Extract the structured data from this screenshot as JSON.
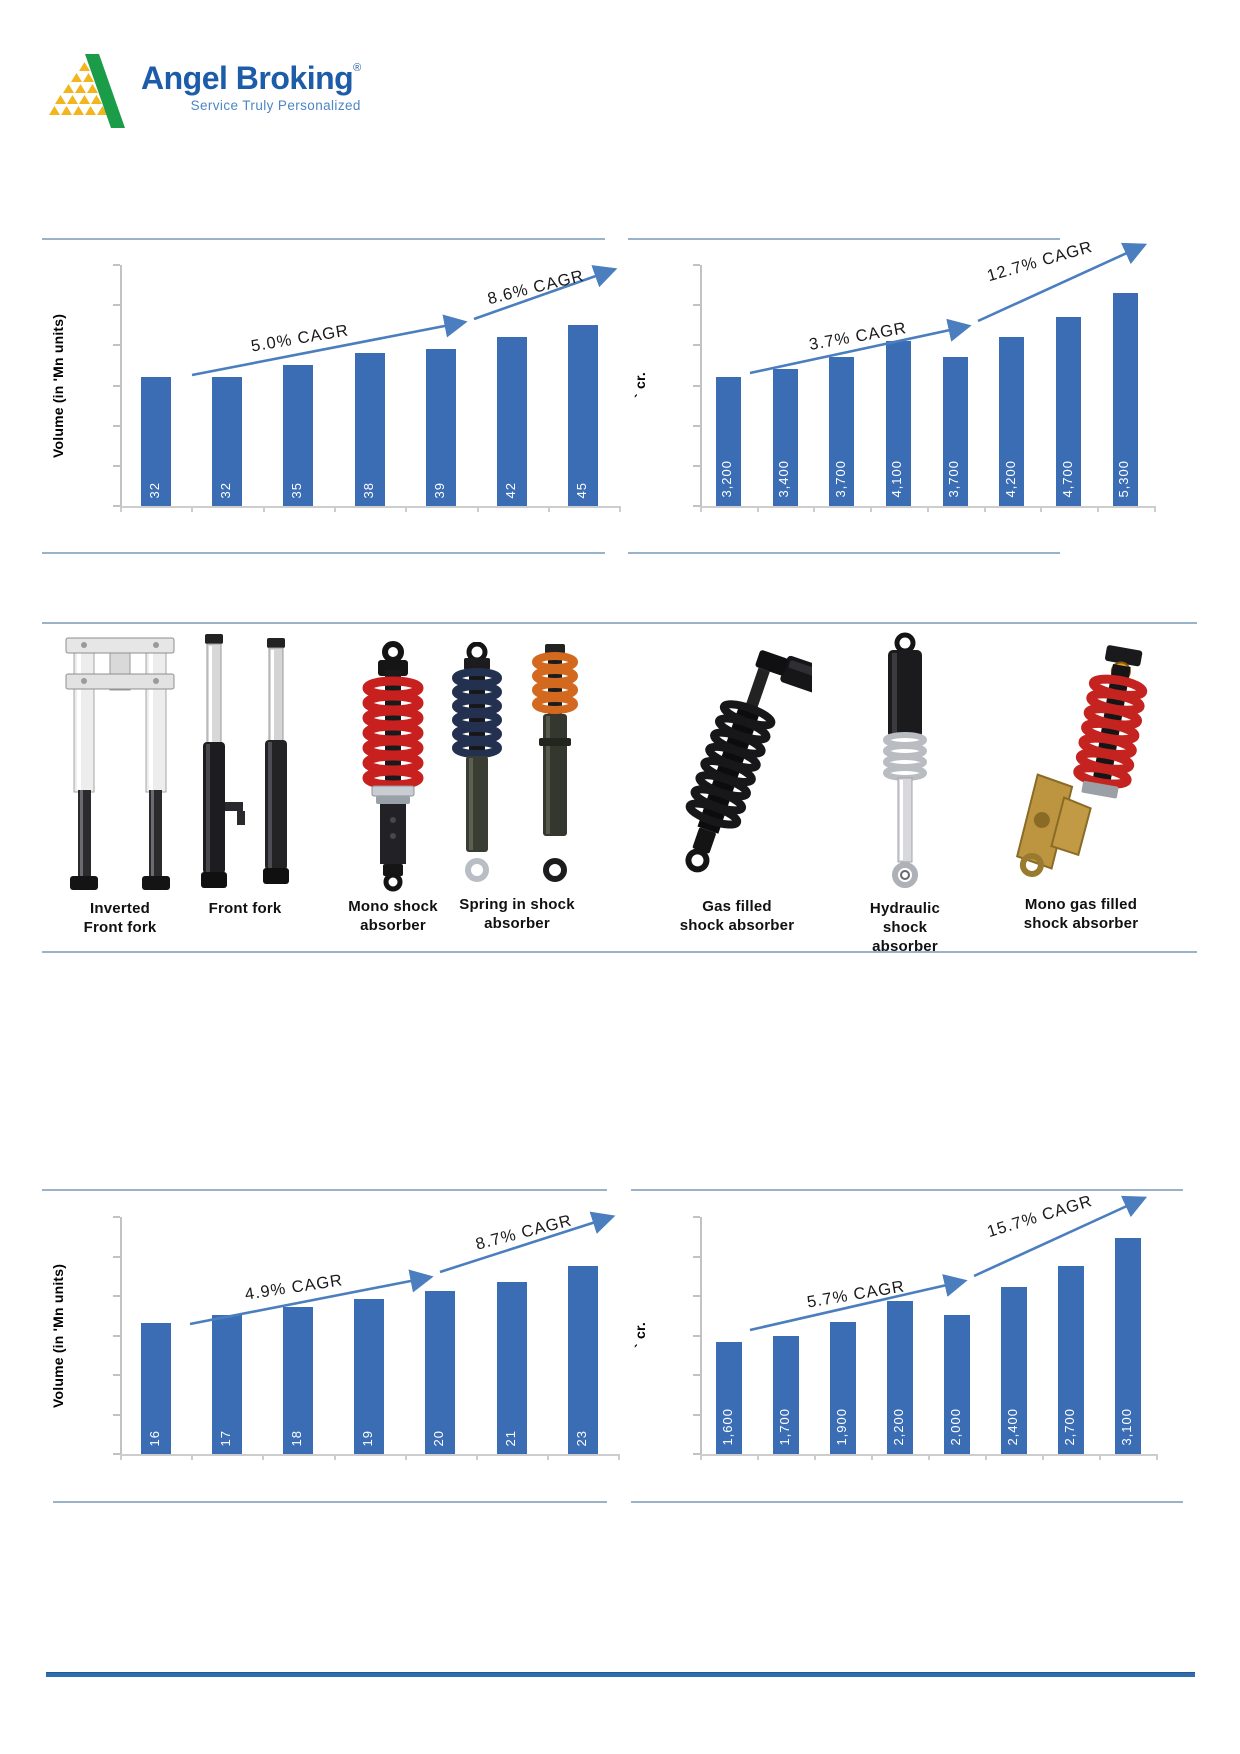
{
  "logo": {
    "title": "Angel Broking",
    "registered": "®",
    "tagline": "Service Truly Personalized"
  },
  "colors": {
    "bar": "#3B6DB5",
    "arrow": "#4A7EBE",
    "divider": "#9BB3C9",
    "bottom_rule": "#2F6DAD",
    "bar_label_text": "#FFFFFF"
  },
  "products": {
    "items": [
      {
        "label": "Inverted\nFront fork"
      },
      {
        "label": "Front fork"
      },
      {
        "label": "Mono shock\nabsorber"
      },
      {
        "label": "Spring in shock\nabsorber"
      },
      {
        "label": "Gas filled\nshock absorber"
      },
      {
        "label": "Hydraulic shock\nabsorber"
      },
      {
        "label": "Mono gas filled\nshock absorber"
      }
    ]
  },
  "chart_data": [
    {
      "type": "bar",
      "title": "",
      "ylabel": "Volume (in 'Mn units)",
      "xlabel": "",
      "values": [
        32,
        32,
        35,
        38,
        39,
        42,
        45
      ],
      "labels": [
        "32",
        "32",
        "35",
        "38",
        "39",
        "42",
        "45"
      ],
      "ylim": [
        0,
        60
      ],
      "grid": false,
      "legend": "none",
      "annotations": [
        {
          "label": "5.0% CAGR"
        },
        {
          "label": "8.6% CAGR"
        }
      ]
    },
    {
      "type": "bar",
      "title": "",
      "ylabel": "` cr.",
      "xlabel": "",
      "values": [
        3200,
        3400,
        3700,
        4100,
        3700,
        4200,
        4700,
        5300
      ],
      "labels": [
        "3,200",
        "3,400",
        "3,700",
        "4,100",
        "3,700",
        "4,200",
        "4,700",
        "5,300"
      ],
      "ylim": [
        0,
        6000
      ],
      "grid": false,
      "legend": "none",
      "annotations": [
        {
          "label": "3.7% CAGR"
        },
        {
          "label": "12.7% CAGR"
        }
      ]
    },
    {
      "type": "bar",
      "title": "",
      "ylabel": "Volume (in 'Mn units)",
      "xlabel": "",
      "values": [
        16,
        17,
        18,
        19,
        20,
        21,
        23
      ],
      "labels": [
        "16",
        "17",
        "18",
        "19",
        "20",
        "21",
        "23"
      ],
      "ylim": [
        0,
        29
      ],
      "grid": false,
      "legend": "none",
      "annotations": [
        {
          "label": "4.9% CAGR"
        },
        {
          "label": "8.7% CAGR"
        }
      ]
    },
    {
      "type": "bar",
      "title": "",
      "ylabel": "` cr.",
      "xlabel": "",
      "values": [
        1600,
        1700,
        1900,
        2200,
        2000,
        2400,
        2700,
        3100
      ],
      "labels": [
        "1,600",
        "1,700",
        "1,900",
        "2,200",
        "2,000",
        "2,400",
        "2,700",
        "3,100"
      ],
      "ylim": [
        0,
        3400
      ],
      "grid": false,
      "legend": "none",
      "annotations": [
        {
          "label": "5.7% CAGR"
        },
        {
          "label": "15.7% CAGR"
        }
      ]
    }
  ]
}
